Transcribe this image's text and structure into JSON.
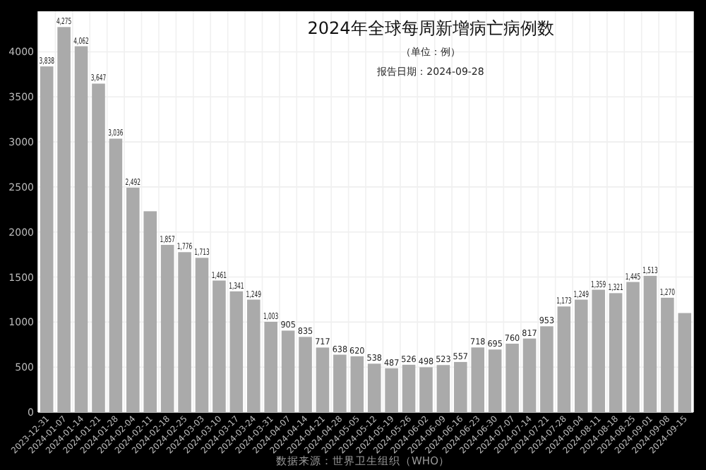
{
  "chart_data": {
    "type": "bar",
    "title": "2024年全球每周新增病亡病例数",
    "subtitle": "（单位：例）",
    "annotations": [
      "报告日期：2024-09-28",
      "数据来源：世界卫生组织（WHO）"
    ],
    "categories": [
      "2023-12-31",
      "2024-01-07",
      "2024-01-14",
      "2024-01-21",
      "2024-01-28",
      "2024-02-04",
      "2024-02-11",
      "2024-02-18",
      "2024-02-25",
      "2024-03-03",
      "2024-03-10",
      "2024-03-17",
      "2024-03-24",
      "2024-03-31",
      "2024-04-07",
      "2024-04-14",
      "2024-04-21",
      "2024-04-28",
      "2024-05-05",
      "2024-05-12",
      "2024-05-19",
      "2024-05-26",
      "2024-06-02",
      "2024-06-09",
      "2024-06-16",
      "2024-06-23",
      "2024-06-30",
      "2024-07-07",
      "2024-07-14",
      "2024-07-21",
      "2024-07-28",
      "2024-08-04",
      "2024-08-11",
      "2024-08-18",
      "2024-08-25",
      "2024-09-01",
      "2024-09-08",
      "2024-09-15"
    ],
    "values": [
      3838,
      4275,
      4062,
      3647,
      3036,
      2492,
      2230,
      1857,
      1776,
      1713,
      1461,
      1341,
      1249,
      1003,
      905,
      835,
      717,
      638,
      620,
      538,
      487,
      526,
      498,
      523,
      557,
      718,
      695,
      760,
      817,
      953,
      1173,
      1249,
      1359,
      1321,
      1445,
      1513,
      1270,
      1100
    ],
    "value_labels": [
      "3,838",
      "4,275",
      "4,062",
      "3,647",
      "3,036",
      "2,492",
      null,
      "1,857",
      "1,776",
      "1,713",
      "1,461",
      "1,341",
      "1,249",
      "1,003",
      "905",
      "835",
      "717",
      "638",
      "620",
      "538",
      "487",
      "526",
      "498",
      "523",
      "557",
      "718",
      "695",
      "760",
      "817",
      "953",
      "1,173",
      "1,249",
      "1,359",
      "1,321",
      "1,445",
      "1,513",
      "1,270",
      null
    ],
    "color": "#aaaaaa",
    "ylim": [
      0,
      4450
    ],
    "yticks": [
      0,
      500,
      1000,
      1500,
      2000,
      2500,
      3000,
      3500,
      4000
    ],
    "grid": true
  }
}
